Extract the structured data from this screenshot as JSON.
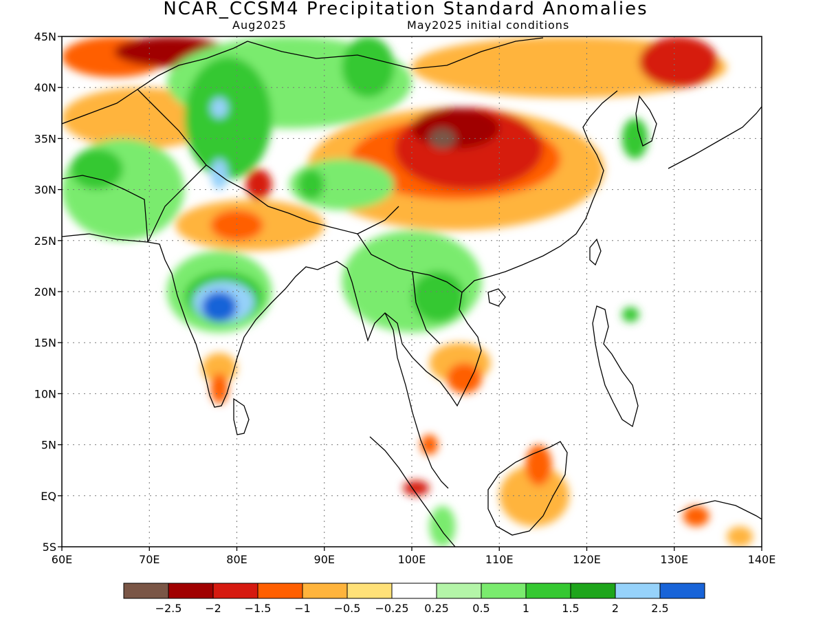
{
  "title": "NCAR_CCSM4 Precipitation Standard Anomalies",
  "subtitle_left": "Aug2025",
  "subtitle_right": "May2025 initial conditions",
  "axes": {
    "lon_range": [
      60,
      140
    ],
    "lat_range": [
      -5,
      45
    ],
    "lon_labels": [
      "60E",
      "70E",
      "80E",
      "90E",
      "100E",
      "110E",
      "120E",
      "130E",
      "140E"
    ],
    "lat_labels": [
      "45N",
      "40N",
      "35N",
      "30N",
      "25N",
      "20N",
      "15N",
      "10N",
      "5N",
      "EQ",
      "5S"
    ]
  },
  "colorbar": {
    "colors": [
      "#7a5646",
      "#a00000",
      "#d61a10",
      "#ff5f00",
      "#ffb43c",
      "#ffe178",
      "#ffffff",
      "#b4f5a8",
      "#7aeb6e",
      "#35c831",
      "#1ea51b",
      "#96d2fa",
      "#1864d8"
    ],
    "labels": [
      "−2.5",
      "−2",
      "−1.5",
      "−1",
      "−0.5",
      "−0.25",
      "0.25",
      "0.5",
      "1",
      "1.5",
      "2",
      "2.5"
    ]
  },
  "anomaly_regions": [
    {
      "color": "#ff5f00",
      "lon": [
        60,
        72
      ],
      "lat": [
        41,
        45
      ]
    },
    {
      "color": "#a00000",
      "lon": [
        66,
        79
      ],
      "lat": [
        42,
        45
      ]
    },
    {
      "color": "#ffb43c",
      "lon": [
        60,
        78
      ],
      "lat": [
        34,
        40
      ]
    },
    {
      "color": "#7aeb6e",
      "lon": [
        60,
        74
      ],
      "lat": [
        25,
        35
      ]
    },
    {
      "color": "#35c831",
      "lon": [
        61,
        67
      ],
      "lat": [
        30,
        34
      ]
    },
    {
      "color": "#7aeb6e",
      "lon": [
        72,
        100
      ],
      "lat": [
        36,
        45
      ]
    },
    {
      "color": "#35c831",
      "lon": [
        74,
        84
      ],
      "lat": [
        31,
        43
      ]
    },
    {
      "color": "#35c831",
      "lon": [
        92,
        98
      ],
      "lat": [
        39,
        45
      ]
    },
    {
      "color": "#96d2fa",
      "lon": [
        77,
        79
      ],
      "lat": [
        37,
        39
      ]
    },
    {
      "color": "#96d2fa",
      "lon": [
        77,
        79
      ],
      "lat": [
        30,
        33
      ]
    },
    {
      "color": "#ffb43c",
      "lon": [
        100,
        136
      ],
      "lat": [
        39,
        45
      ]
    },
    {
      "color": "#d61a10",
      "lon": [
        126,
        135
      ],
      "lat": [
        40,
        45
      ]
    },
    {
      "color": "#ffb43c",
      "lon": [
        88,
        122
      ],
      "lat": [
        26,
        38
      ]
    },
    {
      "color": "#ff5f00",
      "lon": [
        93,
        117
      ],
      "lat": [
        29,
        37
      ]
    },
    {
      "color": "#d61a10",
      "lon": [
        98,
        115
      ],
      "lat": [
        30,
        38
      ]
    },
    {
      "color": "#a00000",
      "lon": [
        100,
        110
      ],
      "lat": [
        34,
        38
      ]
    },
    {
      "color": "#7aeb6e",
      "lon": [
        86,
        98
      ],
      "lat": [
        28,
        33
      ]
    },
    {
      "color": "#35c831",
      "lon": [
        87,
        90
      ],
      "lat": [
        29,
        32
      ]
    },
    {
      "color": "#d61a10",
      "lon": [
        81,
        84
      ],
      "lat": [
        29,
        32
      ]
    },
    {
      "color": "#ffb43c",
      "lon": [
        73,
        90
      ],
      "lat": [
        24,
        29
      ]
    },
    {
      "color": "#ff5f00",
      "lon": [
        77,
        83
      ],
      "lat": [
        25,
        28
      ]
    },
    {
      "color": "#7aeb6e",
      "lon": [
        72,
        84
      ],
      "lat": [
        16,
        24
      ]
    },
    {
      "color": "#35c831",
      "lon": [
        74,
        83
      ],
      "lat": [
        17,
        22
      ]
    },
    {
      "color": "#96d2fa",
      "lon": [
        75,
        82
      ],
      "lat": [
        17,
        21
      ]
    },
    {
      "color": "#1864d8",
      "lon": [
        76,
        80
      ],
      "lat": [
        17,
        20
      ]
    },
    {
      "color": "#7aeb6e",
      "lon": [
        92,
        108
      ],
      "lat": [
        16,
        26
      ]
    },
    {
      "color": "#35c831",
      "lon": [
        100,
        106
      ],
      "lat": [
        17,
        22
      ]
    },
    {
      "color": "#ffb43c",
      "lon": [
        102,
        109
      ],
      "lat": [
        11,
        15
      ]
    },
    {
      "color": "#ff5f00",
      "lon": [
        104,
        108
      ],
      "lat": [
        10,
        13
      ]
    },
    {
      "color": "#ffb43c",
      "lon": [
        76,
        80
      ],
      "lat": [
        11,
        14
      ]
    },
    {
      "color": "#ff5f00",
      "lon": [
        77,
        79
      ],
      "lat": [
        9,
        12
      ]
    },
    {
      "color": "#ff5f00",
      "lon": [
        101,
        103
      ],
      "lat": [
        4,
        6
      ]
    },
    {
      "color": "#d61a10",
      "lon": [
        99,
        102
      ],
      "lat": [
        0,
        1.5
      ]
    },
    {
      "color": "#7aeb6e",
      "lon": [
        102,
        105
      ],
      "lat": [
        -5,
        -1
      ]
    },
    {
      "color": "#ffb43c",
      "lon": [
        110,
        118
      ],
      "lat": [
        -3,
        3
      ]
    },
    {
      "color": "#ff5f00",
      "lon": [
        113,
        116
      ],
      "lat": [
        1,
        5
      ]
    },
    {
      "color": "#ff5f00",
      "lon": [
        131,
        134
      ],
      "lat": [
        -3,
        -1
      ]
    },
    {
      "color": "#ffb43c",
      "lon": [
        136,
        139
      ],
      "lat": [
        -5,
        -3
      ]
    },
    {
      "color": "#35c831",
      "lon": [
        124,
        126
      ],
      "lat": [
        17,
        18.5
      ]
    },
    {
      "color": "#35c831",
      "lon": [
        124,
        127
      ],
      "lat": [
        33,
        37
      ]
    },
    {
      "color": "#7a5646",
      "lon": [
        102,
        105
      ],
      "lat": [
        34,
        36
      ]
    }
  ]
}
